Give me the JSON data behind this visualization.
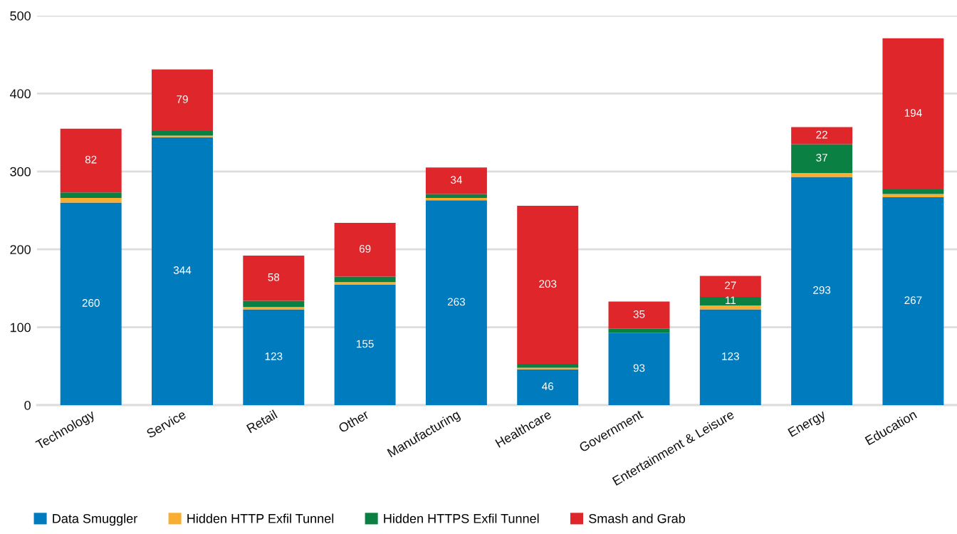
{
  "chart_data": {
    "type": "bar",
    "stacked": true,
    "categories": [
      "Technology",
      "Service",
      "Retail",
      "Other",
      "Manufacturing",
      "Healthcare",
      "Government",
      "Entertainment & Leisure",
      "Energy",
      "Education"
    ],
    "series": [
      {
        "name": "Data Smuggler",
        "color": "#007bbd",
        "values": [
          260,
          344,
          123,
          155,
          263,
          46,
          93,
          123,
          293,
          267
        ],
        "value_labels": [
          "260",
          "344",
          "123",
          "155",
          "263",
          "46",
          "93",
          "123",
          "293",
          "267"
        ]
      },
      {
        "name": "Hidden HTTP Exfil Tunnel",
        "color": "#f9ae32",
        "values": [
          6,
          2,
          3,
          3,
          3,
          2,
          0,
          5,
          5,
          4
        ]
      },
      {
        "name": "Hidden HTTPS Exfil Tunnel",
        "color": "#0b8043",
        "values": [
          7,
          6,
          8,
          7,
          5,
          5,
          5,
          11,
          37,
          6
        ],
        "value_labels": [
          null,
          null,
          null,
          null,
          null,
          null,
          null,
          "11",
          "37",
          null
        ]
      },
      {
        "name": "Smash and Grab",
        "color": "#de262b",
        "values": [
          82,
          79,
          58,
          69,
          34,
          203,
          35,
          27,
          22,
          194
        ],
        "value_labels": [
          "82",
          "79",
          "58",
          "69",
          "34",
          "203",
          "35",
          "27",
          "22",
          "194"
        ]
      }
    ],
    "ylim": [
      0,
      500
    ],
    "yticks": [
      0,
      100,
      200,
      300,
      400,
      500
    ],
    "grid": "y",
    "legend": "bottom"
  }
}
